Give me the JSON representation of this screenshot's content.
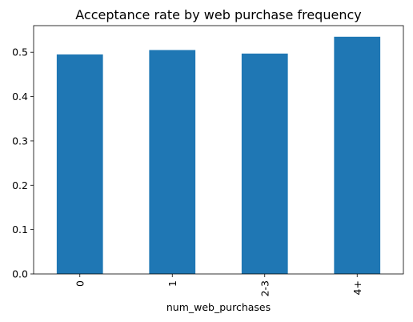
{
  "chart_data": {
    "type": "bar",
    "title": "Acceptance rate by web purchase frequency",
    "xlabel": "num_web_purchases",
    "ylabel": "",
    "categories": [
      "0",
      "1",
      "2-3",
      "4+"
    ],
    "values": [
      0.495,
      0.505,
      0.497,
      0.535
    ],
    "ylim": [
      0,
      0.56
    ],
    "yticks": [
      0.0,
      0.1,
      0.2,
      0.3,
      0.4,
      0.5
    ],
    "ytick_labels": [
      "0.0",
      "0.1",
      "0.2",
      "0.3",
      "0.4",
      "0.5"
    ],
    "bar_color": "#1f77b4",
    "grid": false,
    "legend": "none",
    "xtick_rotation": "vertical"
  }
}
